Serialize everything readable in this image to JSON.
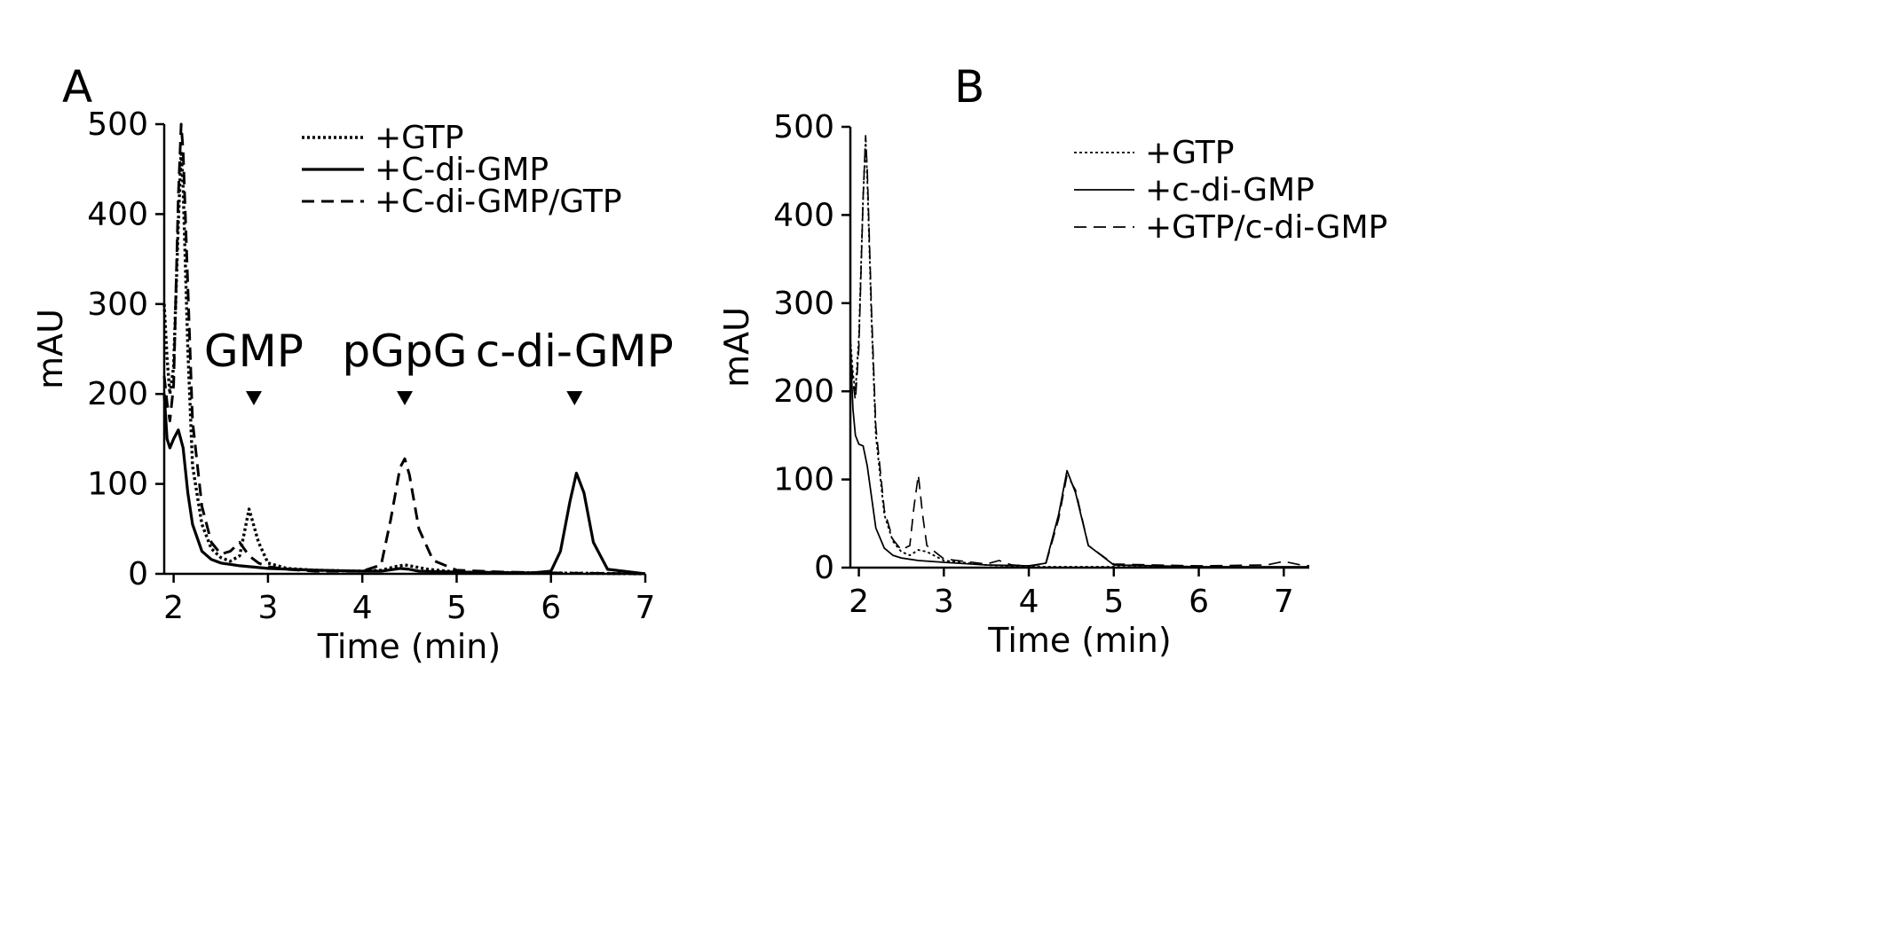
{
  "chart_data": [
    {
      "panel": "A",
      "type": "line",
      "xlabel": "Time (min)",
      "ylabel": "mAU",
      "xlim": [
        1.9,
        7
      ],
      "ylim": [
        0,
        500
      ],
      "xticks": [
        2,
        3,
        4,
        5,
        6,
        7
      ],
      "yticks": [
        0,
        100,
        200,
        300,
        400,
        500
      ],
      "legend_position": "top-right",
      "grid": false,
      "series": [
        {
          "name": "+GTP",
          "style": "dotted",
          "x": [
            1.9,
            1.93,
            1.96,
            2.0,
            2.05,
            2.08,
            2.1,
            2.15,
            2.2,
            2.3,
            2.4,
            2.5,
            2.6,
            2.7,
            2.8,
            2.9,
            3.0,
            3.2,
            3.5,
            4.0,
            4.2,
            4.35,
            4.45,
            4.55,
            4.7,
            5.0,
            6.0,
            7.0
          ],
          "y": [
            300,
            240,
            200,
            230,
            390,
            470,
            430,
            250,
            120,
            55,
            28,
            18,
            14,
            20,
            72,
            35,
            12,
            6,
            4,
            3,
            4,
            8,
            10,
            8,
            5,
            2,
            1,
            0
          ]
        },
        {
          "name": "+C-di-GMP",
          "style": "solid",
          "x": [
            1.9,
            1.93,
            1.96,
            2.0,
            2.05,
            2.1,
            2.15,
            2.2,
            2.3,
            2.4,
            2.5,
            2.7,
            3.0,
            3.5,
            4.0,
            4.2,
            4.4,
            4.5,
            4.6,
            5.0,
            5.8,
            6.0,
            6.1,
            6.2,
            6.27,
            6.35,
            6.45,
            6.6,
            7.0
          ],
          "y": [
            200,
            150,
            140,
            150,
            160,
            140,
            90,
            55,
            25,
            16,
            12,
            9,
            6,
            4,
            3,
            3,
            6,
            5,
            3,
            2,
            1,
            3,
            25,
            80,
            112,
            90,
            35,
            5,
            0
          ]
        },
        {
          "name": "+C-di-GMP/GTP",
          "style": "dashed",
          "x": [
            1.9,
            1.93,
            1.96,
            2.0,
            2.05,
            2.08,
            2.1,
            2.15,
            2.2,
            2.3,
            2.4,
            2.5,
            2.6,
            2.7,
            2.8,
            2.9,
            3.0,
            3.2,
            3.5,
            4.0,
            4.2,
            4.3,
            4.4,
            4.45,
            4.5,
            4.6,
            4.75,
            5.0,
            5.5,
            6.0,
            7.0
          ],
          "y": [
            220,
            190,
            170,
            210,
            420,
            500,
            470,
            320,
            170,
            75,
            35,
            22,
            25,
            35,
            20,
            12,
            8,
            5,
            3,
            3,
            10,
            60,
            118,
            128,
            110,
            50,
            15,
            4,
            2,
            1,
            0
          ]
        }
      ],
      "annotations": [
        {
          "label": "GMP",
          "x": 2.85
        },
        {
          "label": "pGpG",
          "x": 4.45
        },
        {
          "label": "c-di-GMP",
          "x": 6.25
        }
      ]
    },
    {
      "panel": "B",
      "type": "line",
      "xlabel": "Time (min)",
      "ylabel": "mAU",
      "xlim": [
        1.9,
        7.3
      ],
      "ylim": [
        0,
        500
      ],
      "xticks": [
        2,
        3,
        4,
        5,
        6,
        7
      ],
      "yticks": [
        0,
        100,
        200,
        300,
        400,
        500
      ],
      "legend_position": "top-right",
      "grid": false,
      "series": [
        {
          "name": "+GTP",
          "style": "dotted",
          "x": [
            1.9,
            1.93,
            1.96,
            2.0,
            2.05,
            2.08,
            2.1,
            2.15,
            2.2,
            2.3,
            2.4,
            2.5,
            2.6,
            2.7,
            2.8,
            3.0,
            3.5,
            4.0,
            4.5,
            5.0,
            6.0,
            7.0,
            7.3
          ],
          "y": [
            260,
            220,
            200,
            260,
            420,
            485,
            440,
            280,
            150,
            60,
            30,
            18,
            14,
            20,
            18,
            8,
            3,
            1,
            1,
            1,
            0,
            0,
            0
          ]
        },
        {
          "name": "+c-di-GMP",
          "style": "solid",
          "x": [
            1.9,
            1.93,
            1.96,
            2.0,
            2.05,
            2.1,
            2.15,
            2.2,
            2.3,
            2.4,
            2.5,
            2.7,
            3.0,
            3.5,
            4.0,
            4.2,
            4.35,
            4.45,
            4.55,
            4.7,
            5.0,
            6.0,
            7.0,
            7.3
          ],
          "y": [
            250,
            180,
            150,
            140,
            138,
            115,
            80,
            45,
            22,
            14,
            11,
            8,
            6,
            3,
            2,
            5,
            60,
            110,
            85,
            25,
            3,
            1,
            1,
            1
          ]
        },
        {
          "name": "+GTP/c-di-GMP",
          "style": "dashed",
          "x": [
            1.9,
            1.93,
            1.96,
            2.0,
            2.05,
            2.08,
            2.1,
            2.15,
            2.2,
            2.3,
            2.4,
            2.5,
            2.6,
            2.65,
            2.7,
            2.75,
            2.8,
            3.0,
            3.5,
            3.65,
            3.8,
            4.0,
            4.2,
            4.35,
            4.45,
            4.55,
            4.7,
            5.0,
            6.0,
            6.8,
            7.0,
            7.2,
            7.3
          ],
          "y": [
            250,
            210,
            190,
            250,
            420,
            490,
            450,
            290,
            160,
            65,
            32,
            20,
            25,
            70,
            105,
            60,
            25,
            10,
            4,
            8,
            3,
            2,
            4,
            55,
            105,
            88,
            25,
            4,
            2,
            3,
            7,
            3,
            2
          ]
        }
      ]
    }
  ],
  "panels": {
    "a": {
      "letter": "A"
    },
    "b": {
      "letter": "B"
    }
  }
}
